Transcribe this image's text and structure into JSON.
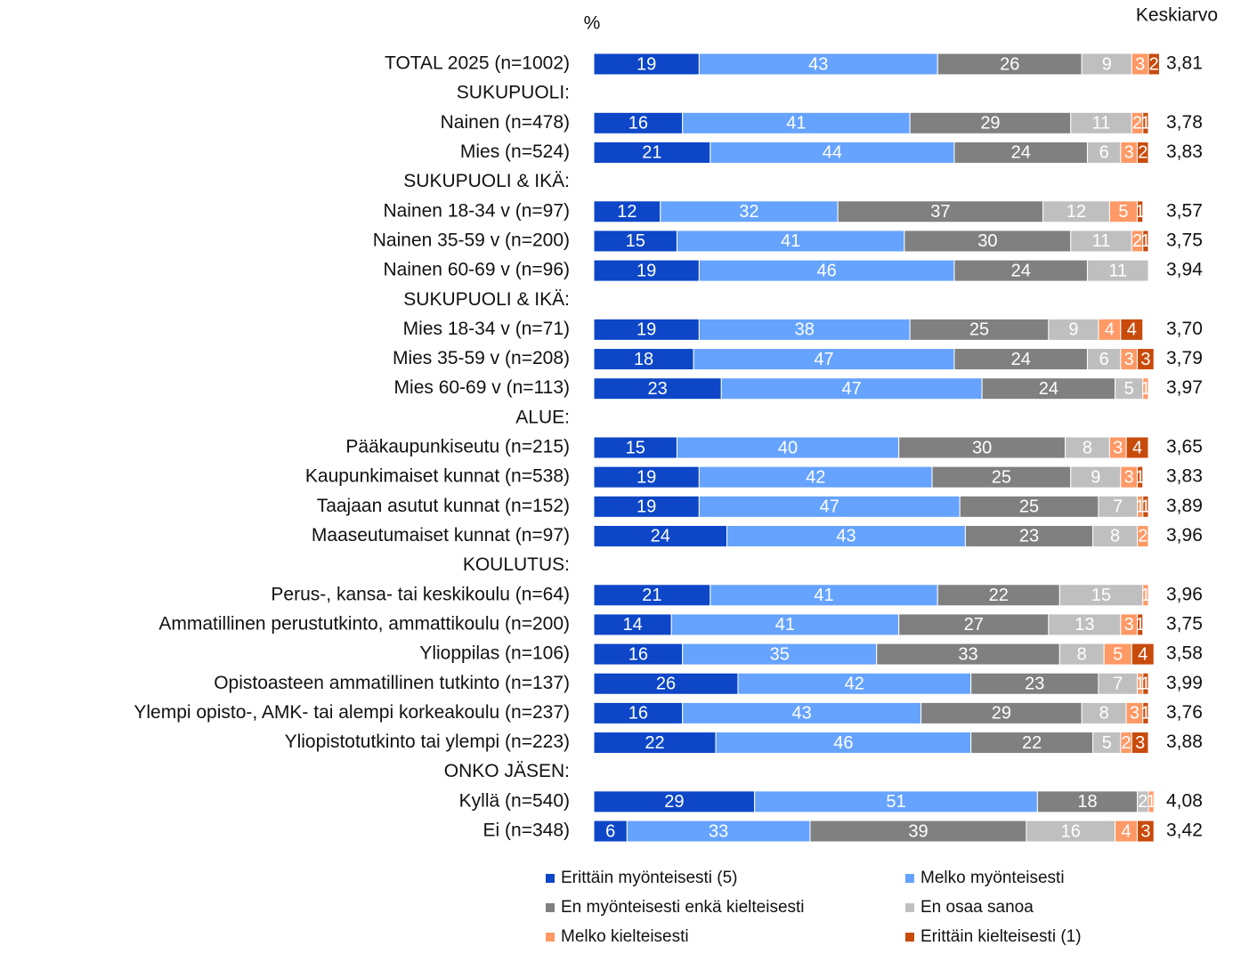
{
  "chart_data": {
    "type": "stacked-bar-horizontal",
    "axis_unit": "%",
    "mean_title": "Keskiarvo",
    "categories": [
      "TOTAL 2025 (n=1002)",
      "SUKUPUOLI:",
      "Nainen (n=478)",
      "Mies (n=524)",
      "SUKUPUOLI & IKÄ:",
      "Nainen 18-34 v (n=97)",
      "Nainen 35-59 v (n=200)",
      "Nainen 60-69 v (n=96)",
      "SUKUPUOLI & IKÄ:",
      "Mies 18-34 v (n=71)",
      "Mies 35-59 v (n=208)",
      "Mies 60-69 v (n=113)",
      "ALUE:",
      "Pääkaupunkiseutu (n=215)",
      "Kaupunkimaiset kunnat (n=538)",
      "Taajaan asutut kunnat (n=152)",
      "Maaseutumaiset kunnat (n=97)",
      "KOULUTUS:",
      "Perus-, kansa- tai keskikoulu (n=64)",
      "Ammatillinen perustutkinto, ammattikoulu (n=200)",
      "Ylioppilas (n=106)",
      "Opistoasteen ammatillinen tutkinto (n=137)",
      "Ylempi opisto-, AMK- tai alempi korkeakoulu (n=237)",
      "Yliopistotutkinto tai ylempi (n=223)",
      "ONKO JÄSEN:",
      "Kyllä (n=540)",
      "Ei (n=348)"
    ],
    "xlim": [
      0,
      100
    ],
    "series": [
      {
        "name": "Erittäin myönteisesti (5)",
        "color": "#0d47c8",
        "values": [
          19,
          null,
          16,
          21,
          null,
          12,
          15,
          19,
          null,
          19,
          18,
          23,
          null,
          15,
          19,
          19,
          24,
          null,
          21,
          14,
          16,
          26,
          16,
          22,
          null,
          29,
          6
        ]
      },
      {
        "name": "Melko myönteisesti",
        "color": "#66a3ff",
        "values": [
          43,
          null,
          41,
          44,
          null,
          32,
          41,
          46,
          null,
          38,
          47,
          47,
          null,
          40,
          42,
          47,
          43,
          null,
          41,
          41,
          35,
          42,
          43,
          46,
          null,
          51,
          33
        ]
      },
      {
        "name": "En myönteisesti enkä kielteisesti",
        "color": "#808080",
        "values": [
          26,
          null,
          29,
          24,
          null,
          37,
          30,
          24,
          null,
          25,
          24,
          24,
          null,
          30,
          25,
          25,
          23,
          null,
          22,
          27,
          33,
          23,
          29,
          22,
          null,
          18,
          39
        ]
      },
      {
        "name": "En osaa sanoa",
        "color": "#bfbfbf",
        "values": [
          9,
          null,
          11,
          6,
          null,
          12,
          11,
          11,
          null,
          9,
          6,
          5,
          null,
          8,
          9,
          7,
          8,
          null,
          15,
          13,
          8,
          7,
          8,
          5,
          null,
          2,
          16
        ]
      },
      {
        "name": "Melko kielteisesti",
        "color": "#ff9966",
        "values": [
          3,
          null,
          2,
          3,
          null,
          5,
          2,
          null,
          null,
          4,
          3,
          1,
          null,
          3,
          3,
          1,
          2,
          null,
          1,
          3,
          5,
          1,
          3,
          2,
          null,
          1,
          4
        ]
      },
      {
        "name": "Erittäin kielteisesti (1)",
        "color": "#c84b0c",
        "values": [
          2,
          null,
          1,
          2,
          null,
          1,
          1,
          null,
          null,
          4,
          3,
          null,
          null,
          4,
          1,
          1,
          null,
          null,
          null,
          1,
          4,
          1,
          1,
          3,
          null,
          null,
          3
        ]
      }
    ],
    "means": {
      "values": [
        3.81,
        null,
        3.78,
        3.83,
        null,
        3.57,
        3.75,
        3.94,
        null,
        3.7,
        3.79,
        3.97,
        null,
        3.65,
        3.83,
        3.89,
        3.96,
        null,
        3.96,
        3.75,
        3.58,
        3.99,
        3.76,
        3.88,
        null,
        4.08,
        3.42
      ],
      "value_labels": [
        "3,81",
        null,
        "3,78",
        "3,83",
        null,
        "3,57",
        "3,75",
        "3,94",
        null,
        "3,70",
        "3,79",
        "3,97",
        null,
        "3,65",
        "3,83",
        "3,89",
        "3,96",
        null,
        "3,96",
        "3,75",
        "3,58",
        "3,99",
        "3,76",
        "3,88",
        null,
        "4,08",
        "3,42"
      ]
    }
  }
}
